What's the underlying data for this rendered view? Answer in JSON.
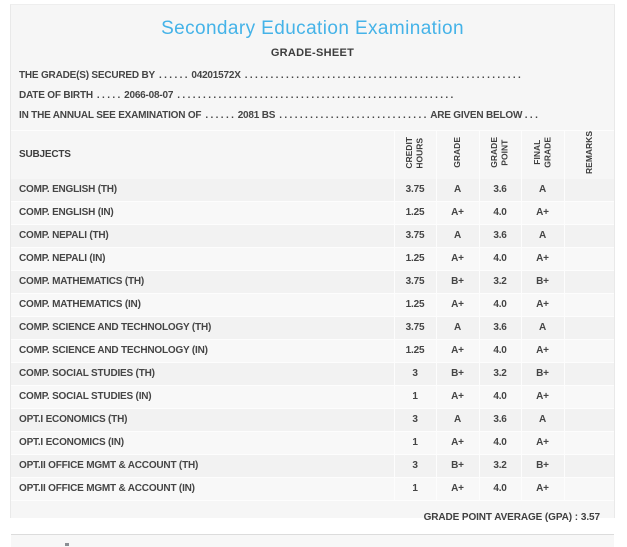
{
  "page": {
    "title": "Secondary Education Examination",
    "subtitle": "GRADE-SHEET",
    "title_color": "#45b3e8"
  },
  "student_info": {
    "lines": [
      {
        "label": "THE GRADE(S) SECURED BY",
        "pre_dots": ". . . . . .",
        "value": "04201572X",
        "post_dots": ". . . . . . . . . . . . . . . . . . . . . . . . . . . . . . . . . . . . . . . . . . . . . . . . . . . . . .",
        "suffix": ""
      },
      {
        "label": "DATE OF BIRTH",
        "pre_dots": ". . . . .",
        "value": "2066-08-07",
        "post_dots": ". . . . . . . . . . . . . . . . . . . . . . . . . . . . . . . . . . . . . . . . . . . . . . . . . . . . . .",
        "suffix": ""
      },
      {
        "label": "IN THE ANNUAL SEE EXAMINATION OF",
        "pre_dots": ". . . . . .",
        "value": "2081 BS",
        "post_dots": ". . . . . . . . . . . . . . . . . . . . . . . . . . . . .",
        "suffix": "ARE GIVEN BELOW . . ."
      }
    ]
  },
  "table": {
    "headers": {
      "subjects": "SUBJECTS",
      "credit_hours": "CREDIT\nHOURS",
      "grade": "GRADE",
      "grade_point": "GRADE\nPOINT",
      "final_grade": "FINAL\nGRADE",
      "remarks": "REMARKS"
    },
    "rows": [
      {
        "subject": "COMP. ENGLISH (TH)",
        "credit_hours": "3.75",
        "grade": "A",
        "grade_point": "3.6",
        "final_grade": "A",
        "remarks": ""
      },
      {
        "subject": "COMP. ENGLISH (IN)",
        "credit_hours": "1.25",
        "grade": "A+",
        "grade_point": "4.0",
        "final_grade": "A+",
        "remarks": ""
      },
      {
        "subject": "COMP. NEPALI (TH)",
        "credit_hours": "3.75",
        "grade": "A",
        "grade_point": "3.6",
        "final_grade": "A",
        "remarks": ""
      },
      {
        "subject": "COMP. NEPALI (IN)",
        "credit_hours": "1.25",
        "grade": "A+",
        "grade_point": "4.0",
        "final_grade": "A+",
        "remarks": ""
      },
      {
        "subject": "COMP. MATHEMATICS (TH)",
        "credit_hours": "3.75",
        "grade": "B+",
        "grade_point": "3.2",
        "final_grade": "B+",
        "remarks": ""
      },
      {
        "subject": "COMP. MATHEMATICS (IN)",
        "credit_hours": "1.25",
        "grade": "A+",
        "grade_point": "4.0",
        "final_grade": "A+",
        "remarks": ""
      },
      {
        "subject": "COMP. SCIENCE AND TECHNOLOGY (TH)",
        "credit_hours": "3.75",
        "grade": "A",
        "grade_point": "3.6",
        "final_grade": "A",
        "remarks": ""
      },
      {
        "subject": "COMP. SCIENCE AND TECHNOLOGY (IN)",
        "credit_hours": "1.25",
        "grade": "A+",
        "grade_point": "4.0",
        "final_grade": "A+",
        "remarks": ""
      },
      {
        "subject": "COMP. SOCIAL STUDIES (TH)",
        "credit_hours": "3",
        "grade": "B+",
        "grade_point": "3.2",
        "final_grade": "B+",
        "remarks": ""
      },
      {
        "subject": "COMP. SOCIAL STUDIES (IN)",
        "credit_hours": "1",
        "grade": "A+",
        "grade_point": "4.0",
        "final_grade": "A+",
        "remarks": ""
      },
      {
        "subject": "OPT.I ECONOMICS (TH)",
        "credit_hours": "3",
        "grade": "A",
        "grade_point": "3.6",
        "final_grade": "A",
        "remarks": ""
      },
      {
        "subject": "OPT.I ECONOMICS (IN)",
        "credit_hours": "1",
        "grade": "A+",
        "grade_point": "4.0",
        "final_grade": "A+",
        "remarks": ""
      },
      {
        "subject": "OPT.II OFFICE MGMT & ACCOUNT (TH)",
        "credit_hours": "3",
        "grade": "B+",
        "grade_point": "3.2",
        "final_grade": "B+",
        "remarks": ""
      },
      {
        "subject": "OPT.II OFFICE MGMT & ACCOUNT (IN)",
        "credit_hours": "1",
        "grade": "A+",
        "grade_point": "4.0",
        "final_grade": "A+",
        "remarks": ""
      }
    ]
  },
  "summary": {
    "gpa_label": "GRADE POINT AVERAGE (GPA) :",
    "gpa_value": "3.57"
  }
}
